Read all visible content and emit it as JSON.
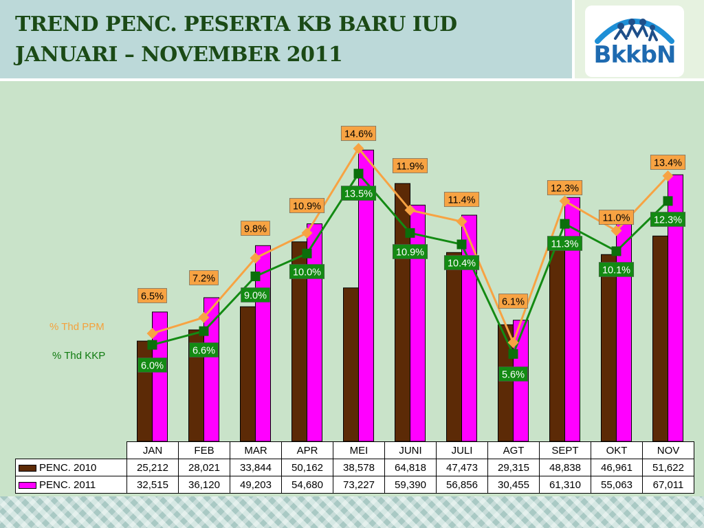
{
  "title": {
    "line1": "TREND PENC. PESERTA KB BARU IUD",
    "line2": "JANUARI – NOVEMBER 2011"
  },
  "logo": {
    "text": "BkkbN",
    "icon": "family-arch-icon"
  },
  "legend": {
    "ppm": "% Thd PPM",
    "kkp": "% Thd KKP"
  },
  "colors": {
    "bar2010": "#5c2a06",
    "bar2011": "#ff00ff",
    "ppm_line": "#f7a343",
    "ppm_label_bg": "#f7a343",
    "kkp_line": "#138a13",
    "kkp_marker": "#0b6e0b"
  },
  "chart_data": {
    "type": "bar",
    "categories": [
      "JAN",
      "FEB",
      "MAR",
      "APR",
      "MEI",
      "JUNI",
      "JULI",
      "AGT",
      "SEPT",
      "OKT",
      "NOV"
    ],
    "series": [
      {
        "name": "PENC. 2010",
        "values": [
          25212,
          28021,
          33844,
          50162,
          38578,
          64818,
          47473,
          29315,
          48838,
          46961,
          51622
        ],
        "labels": [
          "25,212",
          "28,021",
          "33,844",
          "50,162",
          "38,578",
          "64,818",
          "47,473",
          "29,315",
          "48,838",
          "46,961",
          "51,622"
        ]
      },
      {
        "name": "PENC. 2011",
        "values": [
          32515,
          36120,
          49203,
          54680,
          73227,
          59390,
          56856,
          30455,
          61310,
          55063,
          67011
        ],
        "labels": [
          "32,515",
          "36,120",
          "49,203",
          "54,680",
          "73,227",
          "59,390",
          "56,856",
          "30,455",
          "61,310",
          "55,063",
          "67,011"
        ]
      },
      {
        "name": "% Thd PPM",
        "values": [
          6.5,
          7.2,
          9.8,
          10.9,
          14.6,
          11.9,
          11.4,
          6.1,
          12.3,
          11.0,
          13.4
        ],
        "labels": [
          "6.5%",
          "7.2%",
          "9.8%",
          "10.9%",
          "14.6%",
          "11.9%",
          "11.4%",
          "6.1%",
          "12.3%",
          "11.0%",
          "13.4%"
        ]
      },
      {
        "name": "% Thd KKP",
        "values": [
          6.0,
          6.6,
          9.0,
          10.0,
          13.5,
          10.9,
          10.4,
          5.6,
          11.3,
          10.1,
          12.3
        ],
        "labels": [
          "6.0%",
          "6.6%",
          "9.0%",
          "10.0%",
          "13.5%",
          "10.9%",
          "10.4%",
          "5.6%",
          "11.3%",
          "10.1%",
          "12.3%"
        ]
      }
    ],
    "title": "",
    "xlabel": "",
    "ylabel": "",
    "ylim": [
      0,
      75000
    ],
    "pct_lim": [
      0,
      16.5
    ],
    "grid": false,
    "legend": "left"
  }
}
